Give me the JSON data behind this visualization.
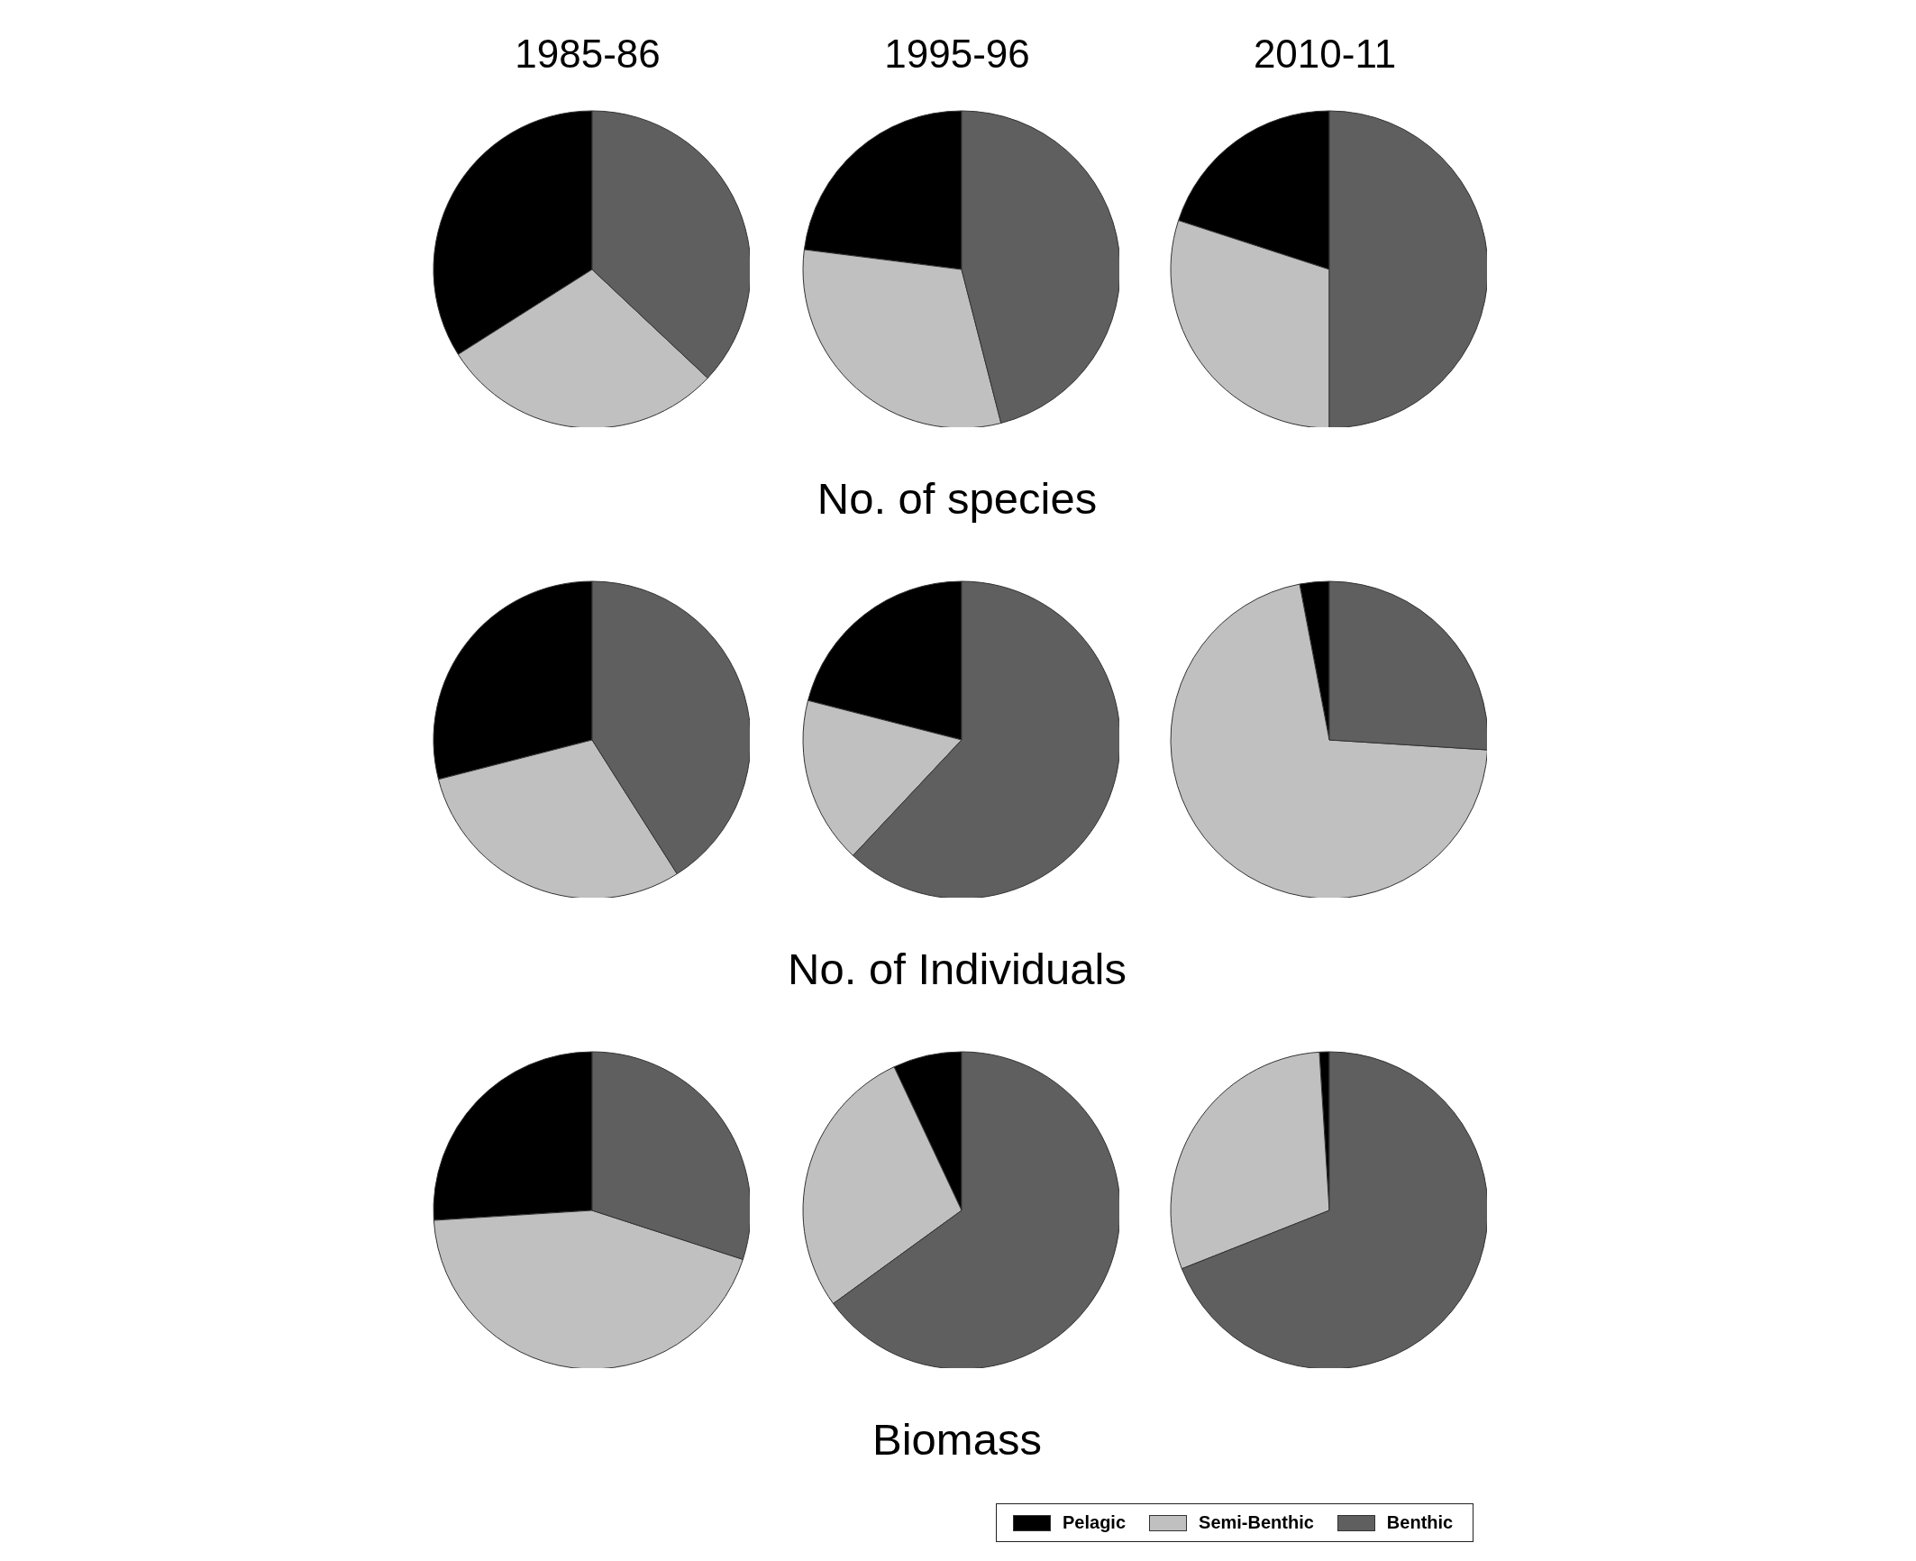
{
  "chart_data": [
    {
      "type": "pie",
      "title": "1985-86",
      "categories": [
        null,
        null,
        null
      ],
      "values": [
        34,
        29,
        37
      ],
      "colors": [
        "#000000",
        "#c0c0c0",
        "#5f5f5f"
      ]
    },
    {
      "type": "pie",
      "title": "1995-96",
      "xlabel": "No. of species",
      "categories": [
        null,
        null,
        null
      ],
      "values": [
        23,
        31,
        46
      ],
      "colors": [
        "#000000",
        "#c0c0c0",
        "#5f5f5f"
      ]
    },
    {
      "type": "pie",
      "title": "2010-11",
      "categories": [
        null,
        null,
        null
      ],
      "values": [
        20,
        30,
        50
      ],
      "colors": [
        "#000000",
        "#c0c0c0",
        "#5f5f5f"
      ]
    },
    {
      "type": "pie",
      "categories": [
        null,
        null,
        null
      ],
      "values": [
        29,
        30,
        41
      ],
      "colors": [
        "#000000",
        "#c0c0c0",
        "#5f5f5f"
      ]
    },
    {
      "type": "pie",
      "xlabel": "No. of Individuals",
      "categories": [
        null,
        null,
        null
      ],
      "values": [
        21,
        17,
        62
      ],
      "colors": [
        "#000000",
        "#c0c0c0",
        "#5f5f5f"
      ]
    },
    {
      "type": "pie",
      "categories": [
        null,
        null,
        null
      ],
      "values": [
        3,
        71,
        26
      ],
      "colors": [
        "#000000",
        "#c0c0c0",
        "#5f5f5f"
      ]
    },
    {
      "type": "pie",
      "categories": [
        null,
        null,
        null
      ],
      "values": [
        26,
        44,
        30
      ],
      "colors": [
        "#000000",
        "#c0c0c0",
        "#5f5f5f"
      ]
    },
    {
      "type": "pie",
      "xlabel": "Biomass",
      "categories": [
        null,
        null,
        null
      ],
      "values": [
        7,
        28,
        65
      ],
      "colors": [
        "#000000",
        "#c0c0c0",
        "#5f5f5f"
      ]
    },
    {
      "type": "pie",
      "legend": "bottom",
      "categories": [
        "Pelagic",
        "Semi-Benthic",
        "Benthic"
      ],
      "values": [
        1,
        30,
        69
      ],
      "colors": [
        "#000000",
        "#c0c0c0",
        "#5f5f5f"
      ]
    }
  ]
}
